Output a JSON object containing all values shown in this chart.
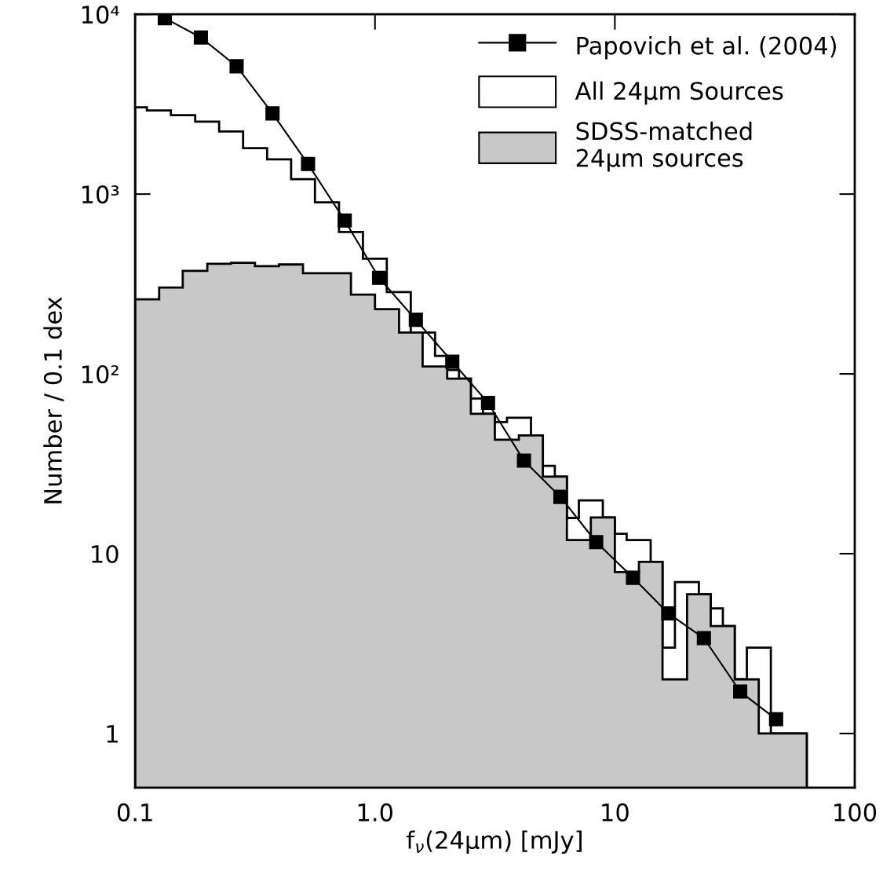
{
  "chart_data": {
    "type": "histogram",
    "xlabel": "f$_{ν}$(24μm) [mJy]",
    "ylabel": "Number / 0.1 dex",
    "log": "xy",
    "grid": false,
    "legend": "top right",
    "xlim": [
      0.1,
      100
    ],
    "xticks": [
      0.1,
      {
        "value": 1,
        "label": "1.0"
      },
      10,
      100
    ],
    "ylim": [
      0.5,
      10000
    ],
    "yticks": [
      1,
      10,
      {
        "value": 100,
        "label": "10²"
      },
      {
        "value": 1000,
        "label": "10³"
      },
      {
        "value": 10000,
        "label": "10⁴"
      }
    ],
    "bins": [
      0.1,
      0.112,
      0.126,
      0.141,
      0.158,
      0.178,
      0.2,
      0.224,
      0.251,
      0.282,
      0.316,
      0.355,
      0.398,
      0.447,
      0.501,
      0.562,
      0.631,
      0.708,
      0.794,
      0.891,
      1.0,
      1.12,
      1.26,
      1.41,
      1.58,
      1.78,
      2.0,
      2.24,
      2.51,
      2.82,
      3.16,
      3.55,
      3.98,
      4.47,
      5.01,
      5.62,
      6.31,
      7.08,
      7.94,
      8.91,
      10,
      11.2,
      12.6,
      14.1,
      15.8,
      17.8,
      20,
      22.4,
      25.1,
      28.2,
      31.6,
      35.5,
      39.8,
      44.7,
      50.1,
      56.2,
      63.1
    ],
    "series": [
      {
        "name": "Papovich et al. (2004)",
        "type": "line",
        "color": "#000000",
        "marker": "square",
        "line_style": "solid",
        "x": [
          0.133,
          0.188,
          0.265,
          0.374,
          0.526,
          0.748,
          1.04,
          1.48,
          2.1,
          2.96,
          4.18,
          5.93,
          8.36,
          11.9,
          16.7,
          23.5,
          33.3,
          47.0
        ],
        "values": [
          9510,
          7430,
          5140,
          2810,
          1470,
          713,
          342,
          200,
          117,
          69,
          32.9,
          20.7,
          11.6,
          7.35,
          4.66,
          3.39,
          1.71,
          1.2
        ]
      },
      {
        "name": "All 24μm Sources",
        "color": "#ffffff",
        "values": [
          3040,
          2920,
          2920,
          2750,
          2750,
          2530,
          2530,
          2230,
          2230,
          1800,
          1800,
          1560,
          1560,
          1210,
          1210,
          900,
          900,
          615,
          615,
          437,
          437,
          285,
          285,
          170,
          170,
          126,
          105,
          94,
          73,
          60,
          54,
          57,
          57,
          45.5,
          30.8,
          26.8,
          15.8,
          19.8,
          19.8,
          15.9,
          12.9,
          11.9,
          11.9,
          9.0,
          3.0,
          6.95,
          6.95,
          5.95,
          4.96,
          3.96,
          2.0,
          3.0,
          3.0,
          1,
          1,
          1
        ]
      },
      {
        "name": "SDSS-matched\n24μm sources",
        "color": "#c8c8c8",
        "values": [
          260,
          260,
          302,
          302,
          374,
          374,
          410,
          410,
          415,
          415,
          397,
          397,
          406,
          406,
          363,
          363,
          363,
          363,
          276,
          276,
          229,
          229,
          170,
          170,
          110,
          110,
          94,
          94,
          60,
          60,
          43,
          43,
          45.5,
          45.5,
          26.8,
          26.8,
          11.9,
          11.9,
          15.9,
          15.9,
          7.9,
          7.9,
          9.0,
          9.0,
          2.0,
          2.0,
          5.95,
          5.95,
          3.96,
          3.96,
          2.0,
          2.0,
          1,
          1,
          1,
          1
        ]
      }
    ]
  }
}
